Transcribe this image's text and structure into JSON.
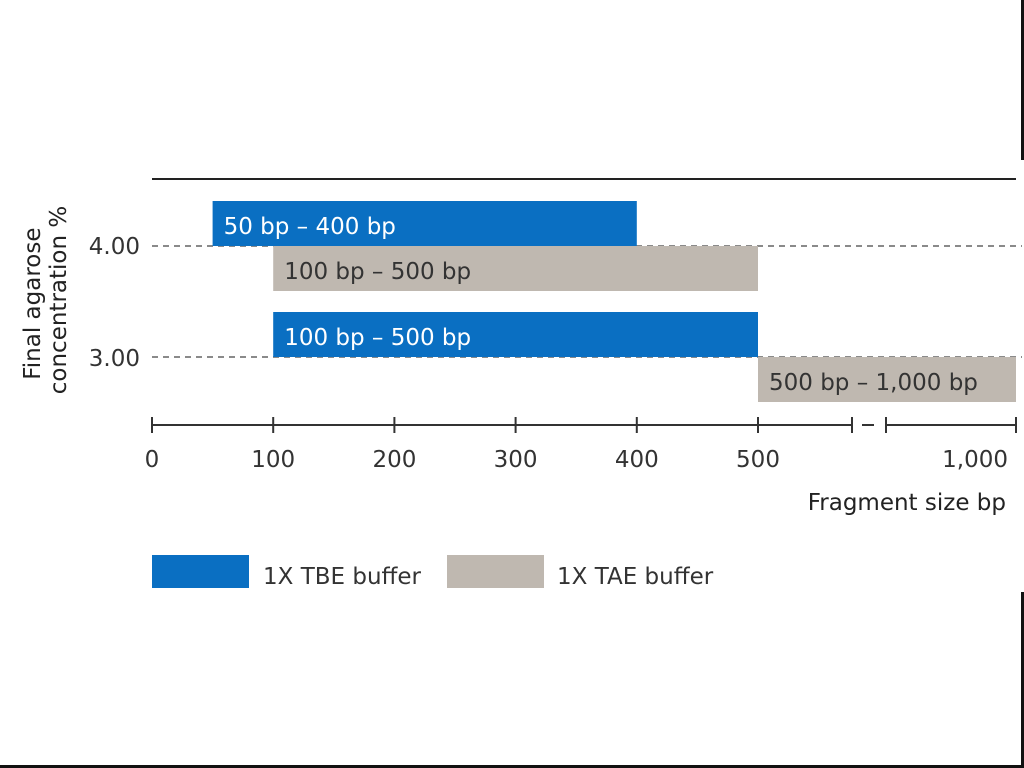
{
  "chart_data": {
    "type": "bar",
    "orientation": "horizontal-range",
    "xlabel": "Fragment size bp",
    "ylabel": "Final agarose concentration %",
    "y_ticks": [
      "4.00",
      "3.00"
    ],
    "x_ticks": [
      "0",
      "100",
      "200",
      "300",
      "400",
      "500",
      "1,000"
    ],
    "x_axis_break_between": [
      500,
      1000
    ],
    "colors": {
      "tbe": "#0a6fc2",
      "tae": "#bfb8b0"
    },
    "legend": [
      {
        "name": "1X TBE buffer",
        "color": "#0a6fc2"
      },
      {
        "name": "1X TAE buffer",
        "color": "#bfb8b0"
      }
    ],
    "bars": [
      {
        "concentration": 4.0,
        "buffer": "1X TBE buffer",
        "from": 50,
        "to": 400,
        "label": "50 bp – 400 bp"
      },
      {
        "concentration": 4.0,
        "buffer": "1X TAE buffer",
        "from": 100,
        "to": 500,
        "label": "100 bp – 500 bp"
      },
      {
        "concentration": 3.0,
        "buffer": "1X TBE buffer",
        "from": 100,
        "to": 500,
        "label": "100 bp – 500 bp"
      },
      {
        "concentration": 3.0,
        "buffer": "1X TAE buffer",
        "from": 500,
        "to": 1000,
        "label": "500 bp – 1,000 bp"
      }
    ]
  }
}
